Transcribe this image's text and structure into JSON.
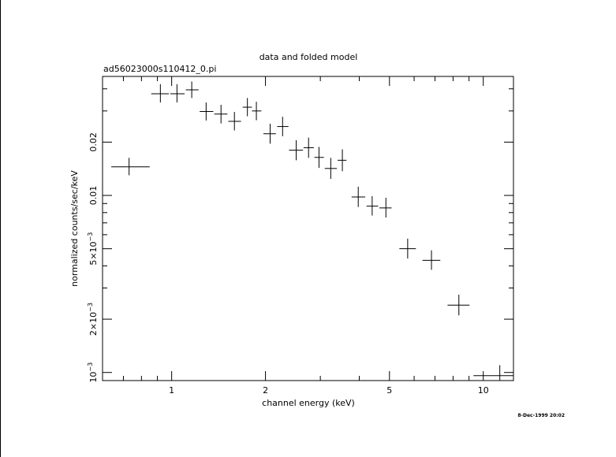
{
  "chart_data": {
    "type": "scatter",
    "title": "data and folded model",
    "subtitle": "ad56023000s110412_0.pi",
    "xlabel": "channel energy (keV)",
    "ylabel": "normalized counts/sec/keV",
    "footer": "8-Dec-1999 20:02",
    "x_scale": "log",
    "y_scale": "log",
    "xlim": [
      0.6,
      12.5
    ],
    "ylim": [
      0.0009,
      0.047
    ],
    "grid": false,
    "x_tick_labels": [
      {
        "value": 1,
        "label": "1"
      },
      {
        "value": 2,
        "label": "2"
      },
      {
        "value": 5,
        "label": "5"
      },
      {
        "value": 10,
        "label": "10"
      }
    ],
    "x_minor_ticks": [
      0.7,
      0.8,
      0.9,
      3,
      4,
      6,
      7,
      8,
      9
    ],
    "y_tick_labels": [
      {
        "value": 0.001,
        "label": "10",
        "sup": "−3"
      },
      {
        "value": 0.002,
        "label": "2×10",
        "sup": "−3"
      },
      {
        "value": 0.005,
        "label": "5×10",
        "sup": "−3"
      },
      {
        "value": 0.01,
        "label": "0.01",
        "sup": ""
      },
      {
        "value": 0.02,
        "label": "0.02",
        "sup": ""
      }
    ],
    "y_minor_ticks": [
      0.003,
      0.004,
      0.006,
      0.007,
      0.008,
      0.009,
      0.03,
      0.04
    ],
    "points": [
      {
        "x": 0.73,
        "xlo": 0.64,
        "xhi": 0.85,
        "y": 0.0145,
        "ylo": 0.013,
        "yhi": 0.0163
      },
      {
        "x": 0.92,
        "xlo": 0.86,
        "xhi": 0.98,
        "y": 0.0375,
        "ylo": 0.0335,
        "yhi": 0.0425
      },
      {
        "x": 1.04,
        "xlo": 0.99,
        "xhi": 1.1,
        "y": 0.0375,
        "ylo": 0.0335,
        "yhi": 0.0425
      },
      {
        "x": 1.16,
        "xlo": 1.11,
        "xhi": 1.22,
        "y": 0.0395,
        "ylo": 0.0355,
        "yhi": 0.044
      },
      {
        "x": 1.29,
        "xlo": 1.23,
        "xhi": 1.36,
        "y": 0.0298,
        "ylo": 0.0265,
        "yhi": 0.0335
      },
      {
        "x": 1.44,
        "xlo": 1.37,
        "xhi": 1.51,
        "y": 0.0288,
        "ylo": 0.0255,
        "yhi": 0.0325
      },
      {
        "x": 1.59,
        "xlo": 1.52,
        "xhi": 1.67,
        "y": 0.0262,
        "ylo": 0.0233,
        "yhi": 0.0296
      },
      {
        "x": 1.75,
        "xlo": 1.69,
        "xhi": 1.81,
        "y": 0.0315,
        "ylo": 0.028,
        "yhi": 0.0355
      },
      {
        "x": 1.87,
        "xlo": 1.81,
        "xhi": 1.94,
        "y": 0.03,
        "ylo": 0.0266,
        "yhi": 0.0338
      },
      {
        "x": 2.07,
        "xlo": 1.97,
        "xhi": 2.16,
        "y": 0.0223,
        "ylo": 0.0196,
        "yhi": 0.0254
      },
      {
        "x": 2.27,
        "xlo": 2.18,
        "xhi": 2.37,
        "y": 0.0245,
        "ylo": 0.0216,
        "yhi": 0.0278
      },
      {
        "x": 2.51,
        "xlo": 2.38,
        "xhi": 2.64,
        "y": 0.018,
        "ylo": 0.0158,
        "yhi": 0.0205
      },
      {
        "x": 2.75,
        "xlo": 2.65,
        "xhi": 2.86,
        "y": 0.0186,
        "ylo": 0.0163,
        "yhi": 0.0212
      },
      {
        "x": 2.97,
        "xlo": 2.87,
        "xhi": 3.08,
        "y": 0.0164,
        "ylo": 0.0143,
        "yhi": 0.0188
      },
      {
        "x": 3.24,
        "xlo": 3.1,
        "xhi": 3.39,
        "y": 0.0142,
        "ylo": 0.0124,
        "yhi": 0.0163
      },
      {
        "x": 3.53,
        "xlo": 3.41,
        "xhi": 3.64,
        "y": 0.0158,
        "ylo": 0.0137,
        "yhi": 0.0182
      },
      {
        "x": 3.97,
        "xlo": 3.78,
        "xhi": 4.18,
        "y": 0.0098,
        "ylo": 0.0086,
        "yhi": 0.0112
      },
      {
        "x": 4.4,
        "xlo": 4.22,
        "xhi": 4.6,
        "y": 0.0087,
        "ylo": 0.0077,
        "yhi": 0.0099
      },
      {
        "x": 4.87,
        "xlo": 4.64,
        "xhi": 5.08,
        "y": 0.0085,
        "ylo": 0.0075,
        "yhi": 0.0097
      },
      {
        "x": 5.72,
        "xlo": 5.38,
        "xhi": 6.08,
        "y": 0.005,
        "ylo": 0.0044,
        "yhi": 0.0057
      },
      {
        "x": 6.82,
        "xlo": 6.38,
        "xhi": 7.28,
        "y": 0.0043,
        "ylo": 0.0038,
        "yhi": 0.0049
      },
      {
        "x": 8.35,
        "xlo": 7.68,
        "xhi": 9.03,
        "y": 0.0024,
        "ylo": 0.0021,
        "yhi": 0.00275
      },
      {
        "x": 11.3,
        "xlo": 9.3,
        "xhi": 13.5,
        "y": 0.00096,
        "ylo": 0.00084,
        "yhi": 0.0011
      }
    ]
  }
}
